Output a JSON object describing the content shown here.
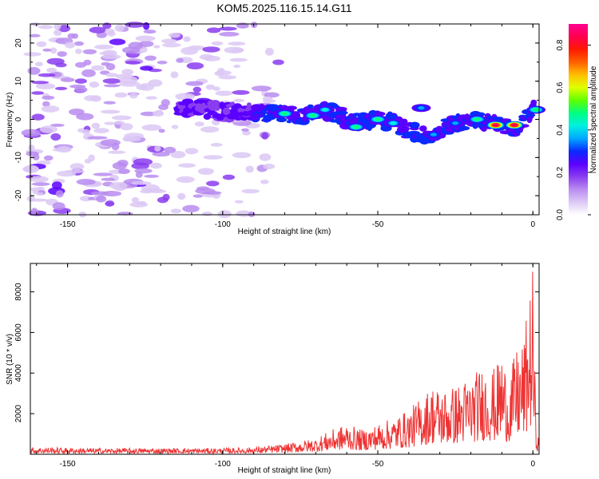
{
  "title": "KOM5.2025.116.15.14.G11",
  "colors": {
    "snr_line": "#ee3333",
    "frame": "#000000",
    "colormap": [
      "#ffffff",
      "#dcc8f5",
      "#b98cf0",
      "#8a3cf0",
      "#5a00ff",
      "#0a2aff",
      "#00a8ff",
      "#00f0e0",
      "#00ff80",
      "#60ff00",
      "#e0ff00",
      "#ffc000",
      "#ff6000",
      "#ff1a00",
      "#ff0050",
      "#ff0090"
    ]
  },
  "chart_data": [
    {
      "type": "heatmap",
      "xlabel": "Height of straight line (km)",
      "ylabel": "Frequency (Hz)",
      "xlim": [
        -162,
        2
      ],
      "ylim": [
        -25,
        25
      ],
      "xticks": [
        "-150",
        "-100",
        "-50",
        "0"
      ],
      "yticks": [
        "-20",
        "-10",
        "0",
        "10",
        "20"
      ],
      "colorbar": {
        "label": "Normalized spectral amplitude",
        "range": [
          0,
          0.9
        ],
        "ticks": [
          "0.0",
          "0.2",
          "0.4",
          "0.6",
          "0.8"
        ]
      },
      "ridge": {
        "x": [
          -115,
          -108,
          -100,
          -92,
          -85,
          -80,
          -75,
          -70,
          -65,
          -60,
          -55,
          -50,
          -45,
          -40,
          -35,
          -30,
          -25,
          -20,
          -15,
          -10,
          -5,
          0
        ],
        "y": [
          3,
          3,
          2,
          2,
          1.5,
          1.5,
          0.5,
          2,
          2,
          0,
          -1,
          0,
          -1,
          -3,
          -4,
          -3,
          -1,
          0,
          -1,
          -1.5,
          -2,
          3
        ]
      },
      "hotspots": [
        {
          "x": -80,
          "y": 1.5,
          "amplitude": 0.5
        },
        {
          "x": -71,
          "y": 1,
          "amplitude": 0.45
        },
        {
          "x": -67,
          "y": 2.5,
          "amplitude": 0.4
        },
        {
          "x": -57,
          "y": -2,
          "amplitude": 0.45
        },
        {
          "x": -50,
          "y": 0,
          "amplitude": 0.45
        },
        {
          "x": -45,
          "y": -1,
          "amplitude": 0.4
        },
        {
          "x": -36,
          "y": 3,
          "amplitude": 0.35
        },
        {
          "x": -32,
          "y": -4,
          "amplitude": 0.35
        },
        {
          "x": -25,
          "y": -1,
          "amplitude": 0.35
        },
        {
          "x": -18,
          "y": 0,
          "amplitude": 0.5
        },
        {
          "x": -12,
          "y": -1.5,
          "amplitude": 0.85
        },
        {
          "x": -6,
          "y": -1.5,
          "amplitude": 0.85
        },
        {
          "x": 1,
          "y": 2.5,
          "amplitude": 0.45
        }
      ]
    },
    {
      "type": "line",
      "xlabel": "Height of straight line (km)",
      "ylabel": "SNR (10 * v/v)",
      "xlim": [
        -162,
        2
      ],
      "ylim": [
        0,
        9400
      ],
      "xticks": [
        "-150",
        "-100",
        "-50",
        "0"
      ],
      "yticks": [
        "2000",
        "4000",
        "6000",
        "8000"
      ],
      "series": [
        {
          "envelope_x": [
            -162,
            -140,
            -120,
            -100,
            -90,
            -80,
            -70,
            -65,
            -60,
            -55,
            -50,
            -45,
            -40,
            -35,
            -32,
            -30,
            -25,
            -20,
            -15,
            -12,
            -10,
            -8,
            -5,
            -3,
            -1,
            0,
            1,
            2
          ],
          "envelope_y": [
            350,
            300,
            300,
            300,
            350,
            500,
            800,
            1200,
            1500,
            1200,
            1500,
            1800,
            2200,
            3000,
            3500,
            3200,
            3400,
            3900,
            4500,
            4200,
            5200,
            3800,
            5300,
            5600,
            8000,
            9300,
            1500,
            600
          ]
        }
      ]
    }
  ]
}
